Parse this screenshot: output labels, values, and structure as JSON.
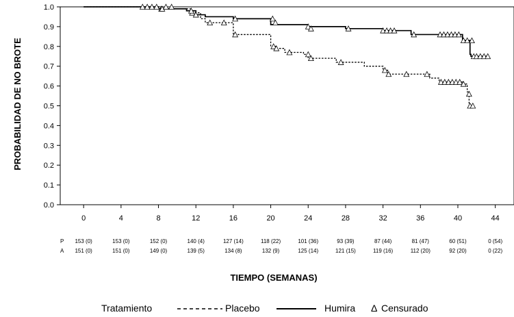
{
  "chart_data": {
    "type": "line",
    "subtype": "kaplan-meier step",
    "ylabel": "PROBABILIDAD DE NO BROTE",
    "xlabel": "TIEMPO (SEMANAS)",
    "xlim": [
      -2.5,
      46
    ],
    "ylim": [
      0,
      1.0
    ],
    "x_ticks": [
      0,
      4,
      8,
      12,
      16,
      20,
      24,
      28,
      32,
      36,
      40,
      44
    ],
    "y_ticks": [
      "0.0",
      "0.1",
      "0.2",
      "0.3",
      "0.4",
      "0.5",
      "0.6",
      "0.7",
      "0.8",
      "0.9",
      "1.0"
    ],
    "grid": false,
    "legend": {
      "title": "Tratamiento",
      "placebo_label": "Placebo",
      "humira_label": "Humira",
      "censored_label": "Censurado",
      "censored_symbol": "Δ",
      "placement": "bottom"
    },
    "series": [
      {
        "name": "Placebo",
        "style": "dashed",
        "steps": [
          [
            0,
            1.0
          ],
          [
            8,
            0.99
          ],
          [
            11.5,
            0.97
          ],
          [
            12.5,
            0.94
          ],
          [
            13,
            0.92
          ],
          [
            16,
            0.86
          ],
          [
            20,
            0.8
          ],
          [
            20.5,
            0.79
          ],
          [
            21.5,
            0.77
          ],
          [
            23.5,
            0.76
          ],
          [
            24,
            0.74
          ],
          [
            27,
            0.72
          ],
          [
            30,
            0.7
          ],
          [
            32,
            0.68
          ],
          [
            32.5,
            0.66
          ],
          [
            37,
            0.64
          ],
          [
            38,
            0.62
          ],
          [
            40.5,
            0.61
          ],
          [
            41,
            0.57
          ],
          [
            41.2,
            0.5
          ]
        ],
        "censored": [
          [
            8.3,
            0.99
          ],
          [
            11.6,
            0.97
          ],
          [
            13.5,
            0.92
          ],
          [
            15,
            0.92
          ],
          [
            16.2,
            0.86
          ],
          [
            20.3,
            0.8
          ],
          [
            20.6,
            0.79
          ],
          [
            22,
            0.77
          ],
          [
            24,
            0.76
          ],
          [
            24.3,
            0.74
          ],
          [
            27.5,
            0.72
          ],
          [
            32.2,
            0.68
          ],
          [
            32.6,
            0.66
          ],
          [
            34.5,
            0.66
          ],
          [
            36.7,
            0.66
          ],
          [
            38.2,
            0.62
          ],
          [
            38.6,
            0.62
          ],
          [
            39,
            0.62
          ],
          [
            39.4,
            0.62
          ],
          [
            39.8,
            0.62
          ],
          [
            40.2,
            0.62
          ],
          [
            40.6,
            0.61
          ],
          [
            41.2,
            0.56
          ],
          [
            41.3,
            0.5
          ],
          [
            41.6,
            0.5
          ]
        ]
      },
      {
        "name": "Humira",
        "style": "solid",
        "steps": [
          [
            0,
            1.0
          ],
          [
            8,
            0.99
          ],
          [
            11,
            0.98
          ],
          [
            12,
            0.96
          ],
          [
            13,
            0.95
          ],
          [
            16,
            0.94
          ],
          [
            20,
            0.91
          ],
          [
            24,
            0.9
          ],
          [
            28,
            0.89
          ],
          [
            32,
            0.88
          ],
          [
            35,
            0.86
          ],
          [
            40.5,
            0.83
          ],
          [
            41.3,
            0.76
          ],
          [
            41.4,
            0.75
          ]
        ],
        "censored": [
          [
            6.3,
            1.0
          ],
          [
            6.8,
            1.0
          ],
          [
            7.3,
            1.0
          ],
          [
            7.8,
            1.0
          ],
          [
            8.4,
            0.99
          ],
          [
            8.8,
            1.0
          ],
          [
            9.4,
            1.0
          ],
          [
            11.5,
            0.98
          ],
          [
            12,
            0.96
          ],
          [
            16.2,
            0.94
          ],
          [
            20.2,
            0.94
          ],
          [
            20.5,
            0.92
          ],
          [
            24,
            0.9
          ],
          [
            24.3,
            0.89
          ],
          [
            28.3,
            0.89
          ],
          [
            32,
            0.88
          ],
          [
            32.4,
            0.88
          ],
          [
            32.8,
            0.88
          ],
          [
            33.2,
            0.88
          ],
          [
            35.3,
            0.86
          ],
          [
            38.1,
            0.86
          ],
          [
            38.5,
            0.86
          ],
          [
            38.9,
            0.86
          ],
          [
            39.3,
            0.86
          ],
          [
            39.7,
            0.86
          ],
          [
            40.1,
            0.86
          ],
          [
            40.6,
            0.83
          ],
          [
            41,
            0.83
          ],
          [
            41.5,
            0.83
          ],
          [
            41.7,
            0.75
          ],
          [
            42,
            0.75
          ],
          [
            42.4,
            0.75
          ],
          [
            42.8,
            0.75
          ],
          [
            43.2,
            0.75
          ]
        ]
      }
    ],
    "at_risk": {
      "rows": [
        {
          "label": "P",
          "values": [
            "153 (0)",
            "153 (0)",
            "152 (0)",
            "140 (4)",
            "127 (14)",
            "118 (22)",
            "101 (36)",
            "93 (39)",
            "87 (44)",
            "81 (47)",
            "60 (51)",
            "0 (54)"
          ]
        },
        {
          "label": "A",
          "values": [
            "151 (0)",
            "151 (0)",
            "149 (0)",
            "139 (5)",
            "134 (8)",
            "132 (9)",
            "125 (14)",
            "121 (15)",
            "119 (16)",
            "112 (20)",
            "92 (20)",
            "0 (22)"
          ]
        }
      ]
    }
  }
}
